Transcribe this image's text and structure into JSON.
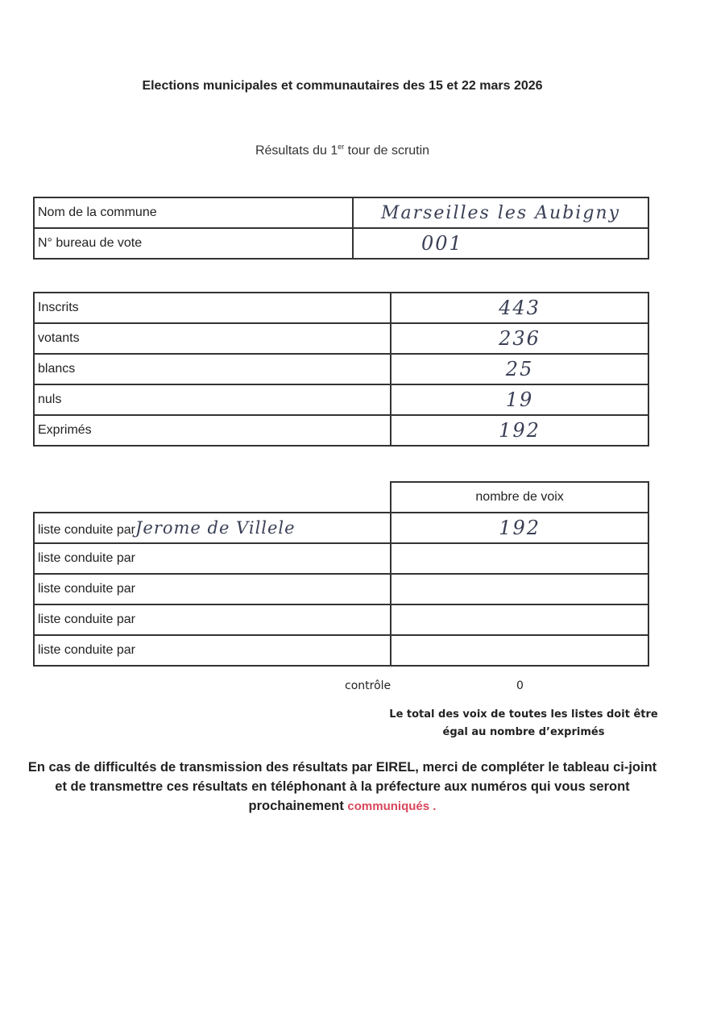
{
  "header": {
    "title": "Elections municipales et communautaires des 15 et 22 mars 2026",
    "subtitle_pre": "Résultats du 1",
    "subtitle_sup": "er",
    "subtitle_post": " tour de scrutin"
  },
  "commune_table": [
    {
      "label": "Nom de la commune",
      "value": "Marseilles les Aubigny"
    },
    {
      "label": "N° bureau de vote",
      "value": "001"
    }
  ],
  "counts_table": [
    {
      "label": "Inscrits",
      "value": "443"
    },
    {
      "label": "votants",
      "value": "236"
    },
    {
      "label": "blancs",
      "value": "25"
    },
    {
      "label": "nuls",
      "value": "19"
    },
    {
      "label": "Exprimés",
      "value": "192"
    }
  ],
  "lists_table": {
    "header": "nombre de voix",
    "rows": [
      {
        "label": "liste conduite par",
        "name": "Jerome de Villele",
        "votes": "192"
      },
      {
        "label": "liste conduite par",
        "name": "",
        "votes": ""
      },
      {
        "label": "liste conduite par",
        "name": "",
        "votes": ""
      },
      {
        "label": "liste conduite par",
        "name": "",
        "votes": ""
      },
      {
        "label": "liste conduite par",
        "name": "",
        "votes": ""
      }
    ]
  },
  "control": {
    "label": "contrôle",
    "value": "0"
  },
  "note": "Le total des voix de toutes les listes doit être égal au nombre d’exprimés",
  "footer": {
    "text": "En cas de difficultés de transmission des résultats par EIREL, merci de compléter le tableau ci-joint et de transmettre ces résultats en téléphonant à la préfecture aux numéros qui vous seront prochainement",
    "highlight": "communiqués .",
    "highlight_color": "#d9465a"
  }
}
